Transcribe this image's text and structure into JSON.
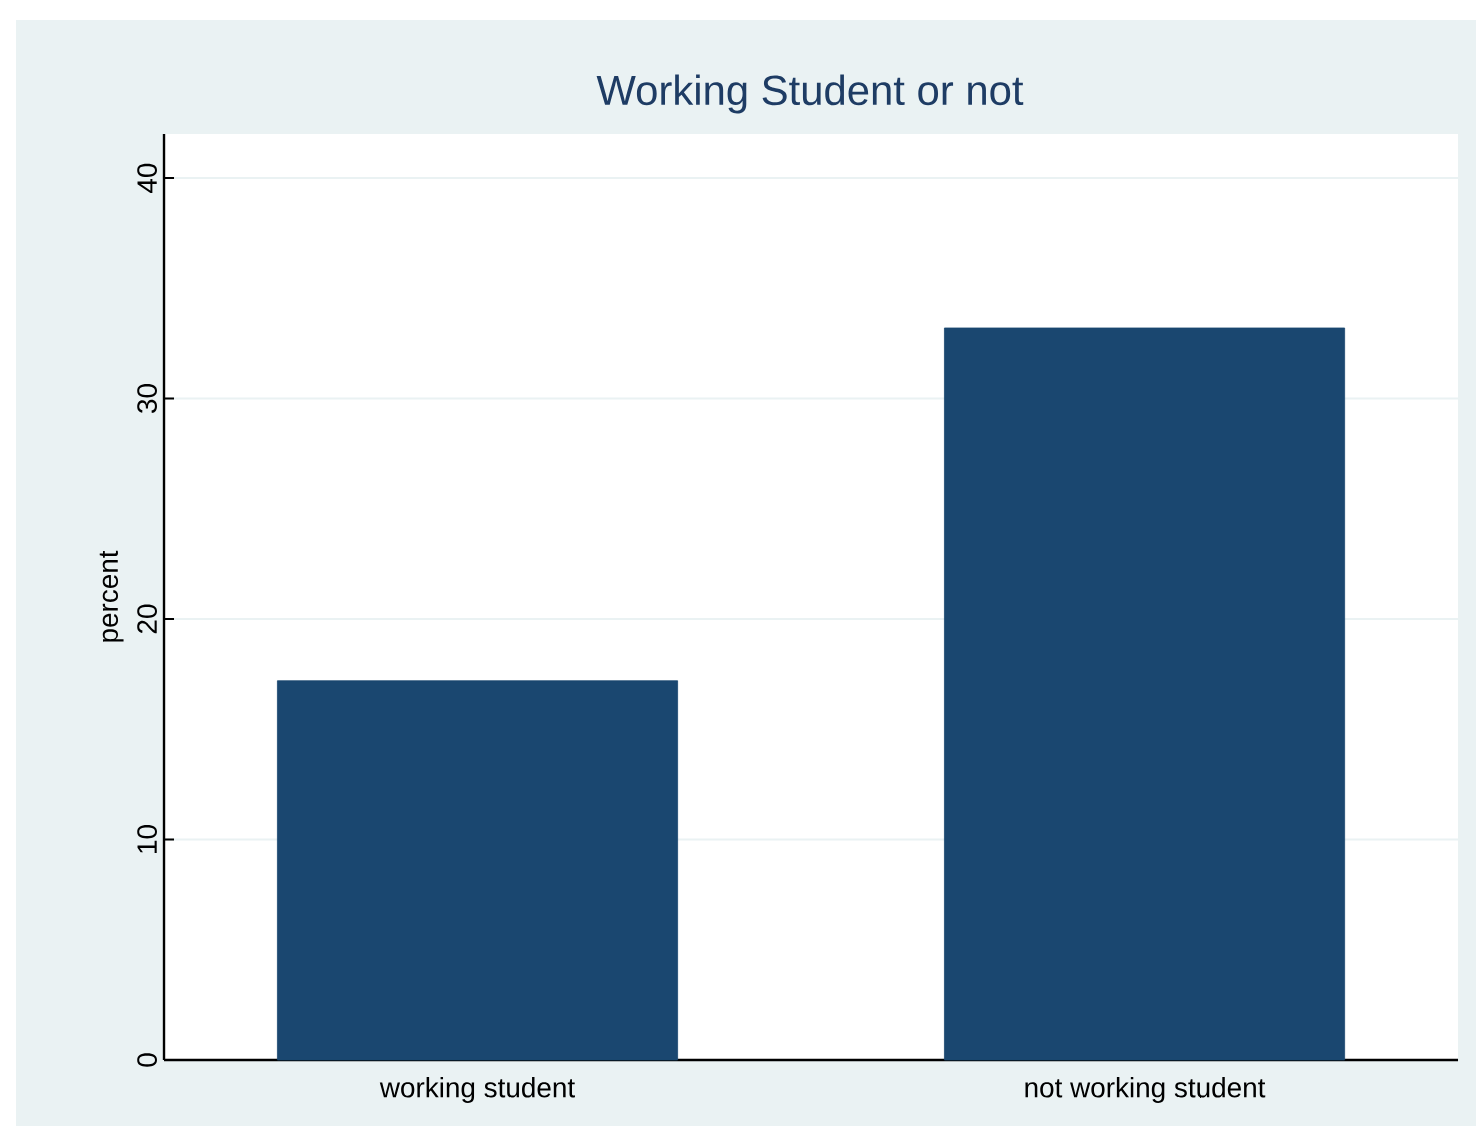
{
  "chart_data": {
    "type": "bar",
    "title": "Working Student or not",
    "ylabel": "percent",
    "categories": [
      "working student",
      "not working student"
    ],
    "values": [
      17.2,
      33.2
    ],
    "color": "#1a4770",
    "ylim": [
      0,
      42
    ],
    "yticks": [
      0,
      10,
      20,
      30,
      40
    ],
    "grid": "y"
  }
}
